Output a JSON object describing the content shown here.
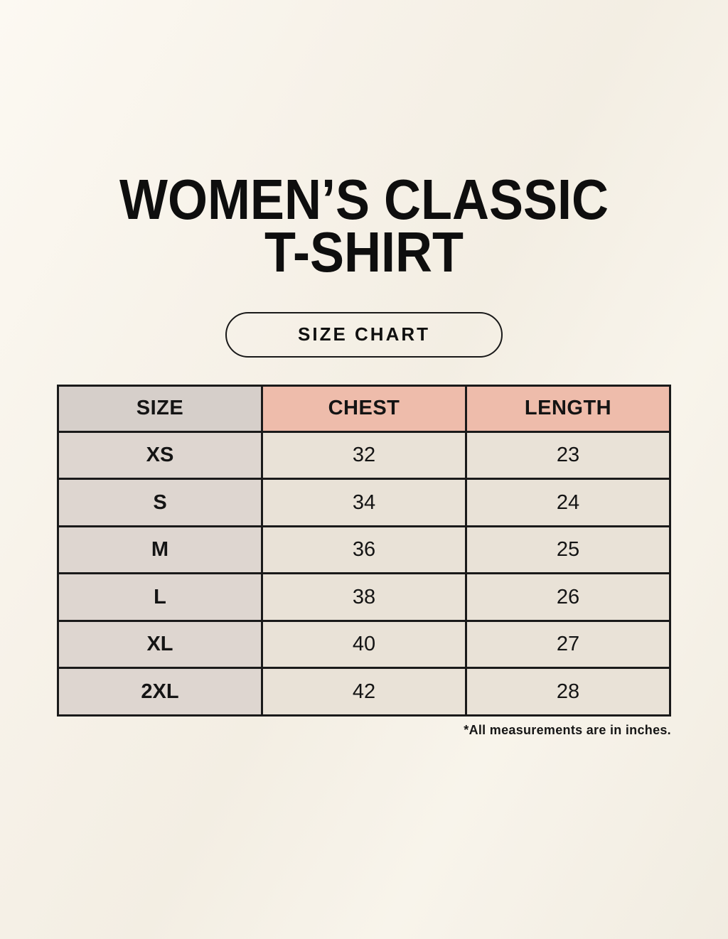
{
  "title": {
    "line1": "WOMEN’S CLASSIC",
    "line2": "T-SHIRT"
  },
  "badge": {
    "label": "SIZE CHART"
  },
  "chart_data": {
    "type": "table",
    "title": "WOMEN’S CLASSIC T-SHIRT",
    "subtitle": "SIZE CHART",
    "columns": [
      "SIZE",
      "CHEST",
      "LENGTH"
    ],
    "rows": [
      [
        "XS",
        "32",
        "23"
      ],
      [
        "S",
        "34",
        "24"
      ],
      [
        "M",
        "36",
        "25"
      ],
      [
        "L",
        "38",
        "26"
      ],
      [
        "XL",
        "40",
        "27"
      ],
      [
        "2XL",
        "42",
        "28"
      ]
    ],
    "note": "*All measurements are in inches.",
    "units": "inches"
  },
  "colors": {
    "page_bg": "#f6f2e8",
    "header_pink": "#eebcab",
    "column_gray_header": "#d6cfca",
    "column_gray": "#ded6d0",
    "cell_cream": "#e9e2d7",
    "border_black": "#1a1a1a",
    "text_black": "#141414"
  }
}
